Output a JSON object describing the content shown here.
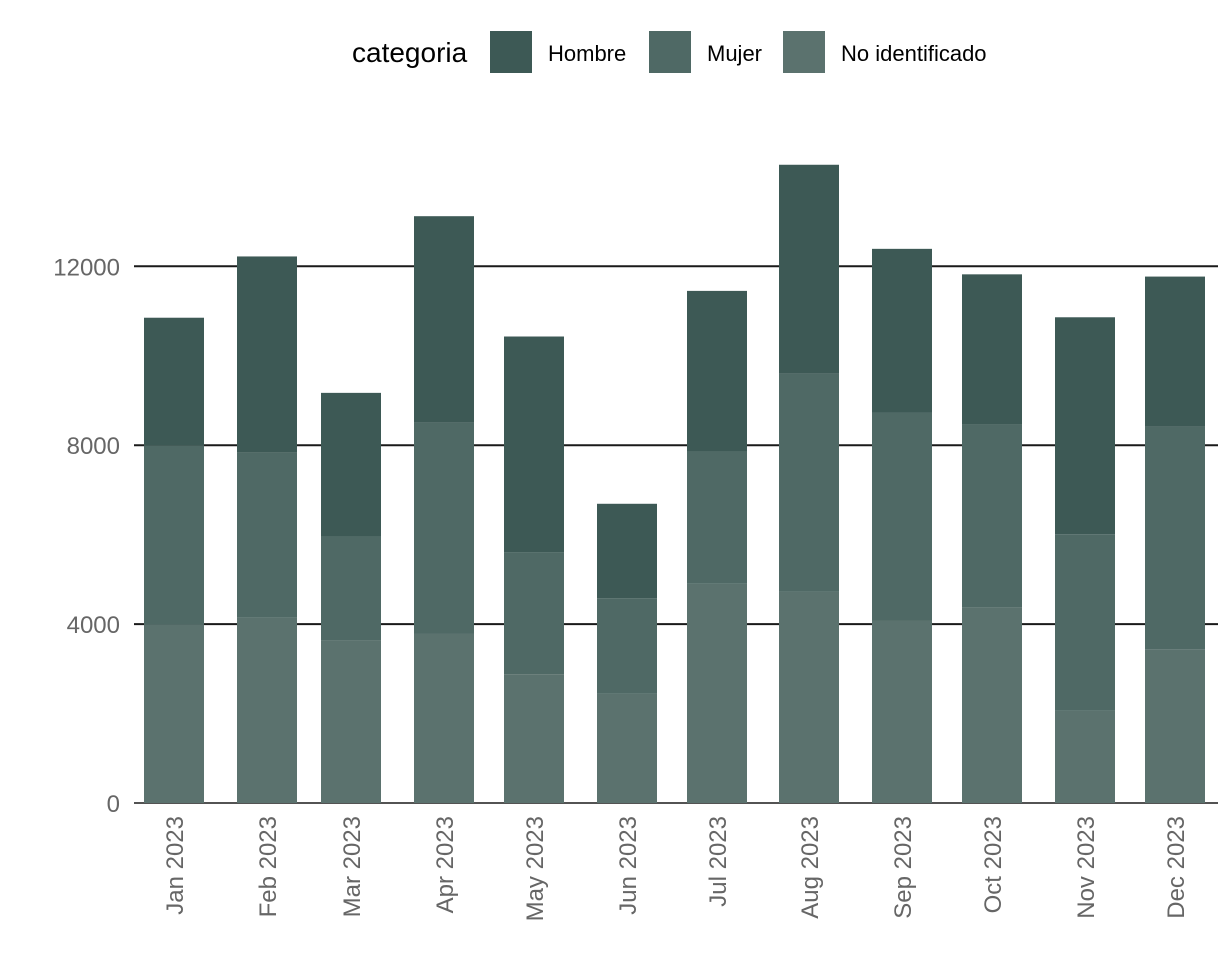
{
  "chart_data": {
    "type": "bar",
    "stacked": true,
    "categories": [
      "Jan 2023",
      "Feb 2023",
      "Mar 2023",
      "Apr 2023",
      "May 2023",
      "Jun 2023",
      "Jul 2023",
      "Aug 2023",
      "Sep 2023",
      "Oct 2023",
      "Nov 2023",
      "Dec 2023"
    ],
    "series": [
      {
        "name": "No identificado",
        "color": "#5b726e",
        "values": [
          3990,
          4140,
          3630,
          3790,
          2880,
          2450,
          4900,
          4720,
          4080,
          4380,
          2060,
          3440
        ]
      },
      {
        "name": "Mujer",
        "color": "#4f6965",
        "values": [
          4010,
          3690,
          2320,
          4710,
          2730,
          2130,
          2960,
          4880,
          4650,
          4080,
          3950,
          4970
        ]
      },
      {
        "name": "Hombre",
        "color": "#3d5955",
        "values": [
          2850,
          4390,
          3220,
          4620,
          4820,
          2110,
          3590,
          4670,
          3660,
          3360,
          4850,
          3360
        ]
      }
    ],
    "legend": {
      "title": "categoria",
      "position": "top",
      "order": [
        "Hombre",
        "Mujer",
        "No identificado"
      ]
    },
    "ylim": [
      0,
      14600
    ],
    "yticks": [
      0,
      4000,
      8000,
      12000
    ],
    "grid": "horizontal major lines",
    "title": "",
    "xlabel": "",
    "ylabel": ""
  }
}
